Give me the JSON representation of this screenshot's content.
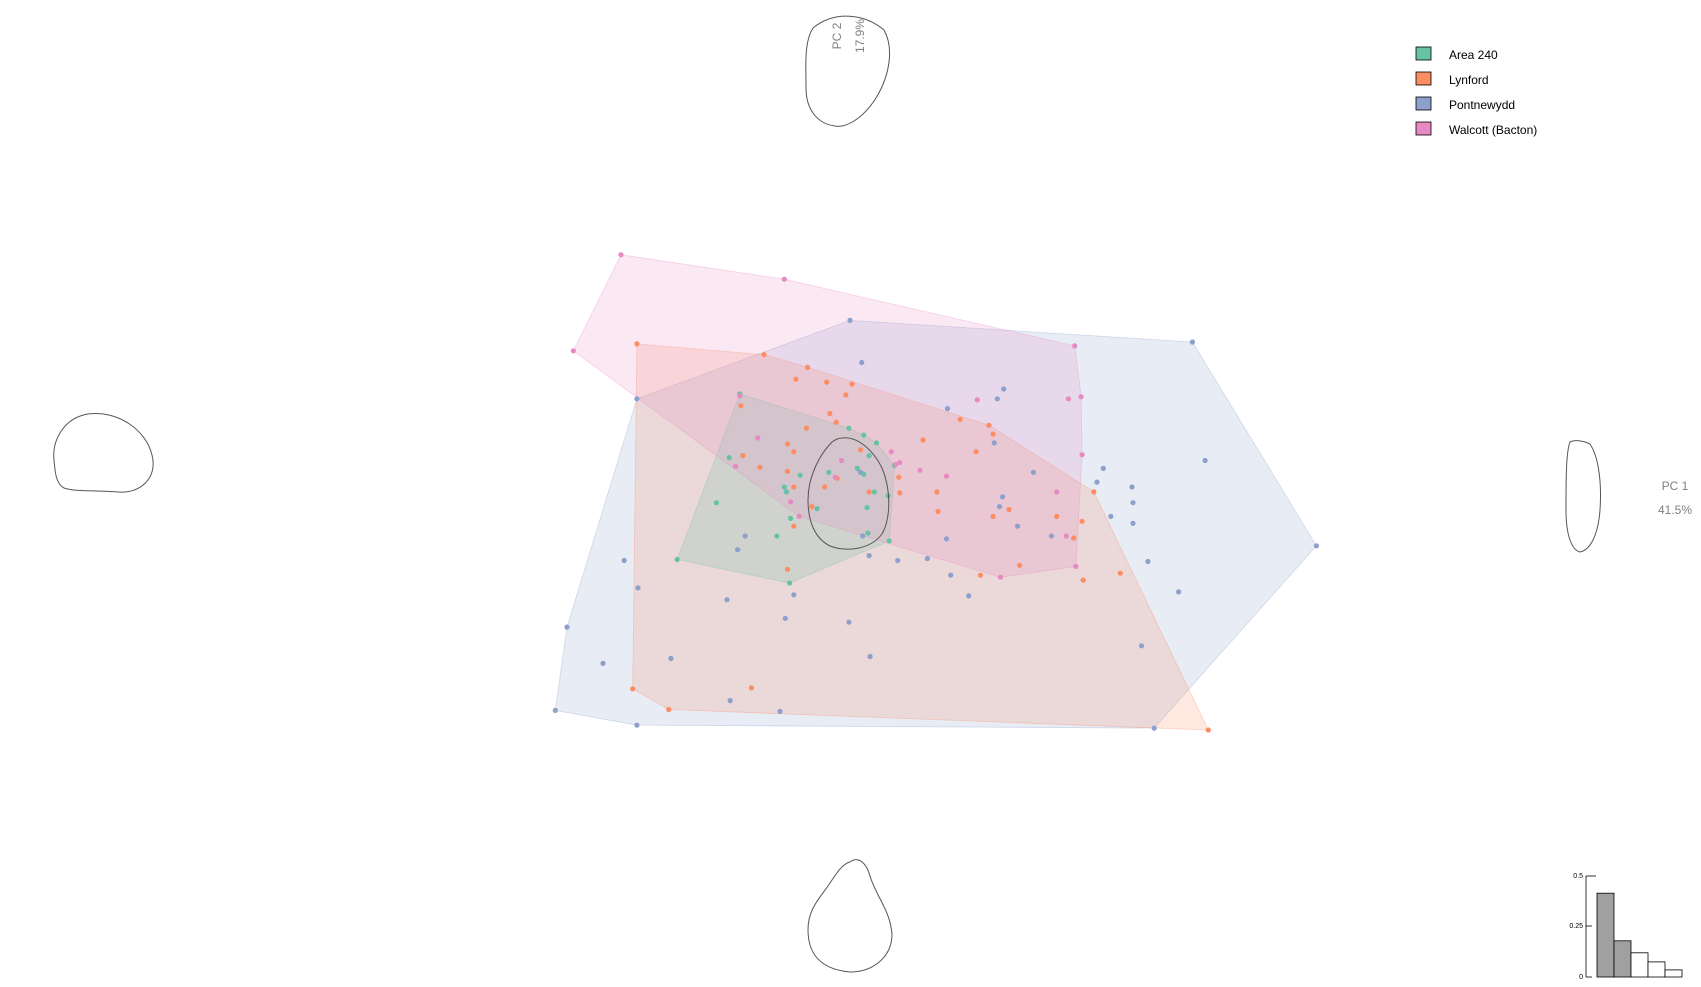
{
  "chart_data": {
    "type": "scatter",
    "x_axis": {
      "label": "PC 1",
      "variance": "41.5%"
    },
    "y_axis": {
      "label": "PC 2",
      "variance": "17.9%"
    },
    "xlim": [
      -6.2,
      6.2
    ],
    "ylim": [
      -4.8,
      4.8
    ],
    "hulls": true,
    "legend_position": "top-right",
    "series": [
      {
        "name": "Area 240",
        "color": "#66c2a5",
        "points": [
          [
            -1.04,
            0.95
          ],
          [
            -1.14,
            0.3
          ],
          [
            -1.26,
            -0.16
          ],
          [
            -1.63,
            -0.74
          ],
          [
            -0.57,
            -0.98
          ],
          [
            -0.69,
            -0.5
          ],
          [
            -0.56,
            -0.32
          ],
          [
            -0.6,
            -0.05
          ],
          [
            -0.47,
            0.12
          ],
          [
            -0.01,
            0.6
          ],
          [
            0.13,
            0.53
          ],
          [
            0.13,
            0.13
          ],
          [
            0.16,
            -0.21
          ],
          [
            0.17,
            -0.47
          ],
          [
            0.23,
            -0.05
          ],
          [
            0.07,
            0.19
          ],
          [
            0.18,
            0.32
          ],
          [
            0.25,
            0.45
          ],
          [
            0.37,
            -0.55
          ],
          [
            -0.31,
            -0.22
          ],
          [
            -0.2,
            0.15
          ],
          [
            0.36,
            -0.09
          ],
          [
            -0.62,
            0.0
          ],
          [
            0.42,
            0.22
          ]
        ]
      },
      {
        "name": "Lynford",
        "color": "#fc8d62",
        "points": [
          [
            -2.01,
            1.46
          ],
          [
            -1.03,
            0.83
          ],
          [
            -0.81,
            1.35
          ],
          [
            -0.51,
            1.1
          ],
          [
            -0.4,
            1.22
          ],
          [
            -0.22,
            1.07
          ],
          [
            0.02,
            1.05
          ],
          [
            -0.04,
            0.94
          ],
          [
            -0.19,
            0.75
          ],
          [
            -0.13,
            0.66
          ],
          [
            -0.59,
            0.44
          ],
          [
            -0.53,
            0.36
          ],
          [
            -1.01,
            0.32
          ],
          [
            -0.85,
            0.2
          ],
          [
            -0.59,
            0.16
          ],
          [
            -0.53,
            0.0
          ],
          [
            -0.24,
            0.0
          ],
          [
            -0.36,
            -0.2
          ],
          [
            -0.53,
            -0.4
          ],
          [
            -0.12,
            0.09
          ],
          [
            0.1,
            0.38
          ],
          [
            0.18,
            -0.05
          ],
          [
            0.46,
            0.1
          ],
          [
            0.47,
            -0.06
          ],
          [
            0.69,
            0.48
          ],
          [
            0.82,
            -0.05
          ],
          [
            0.83,
            -0.25
          ],
          [
            1.04,
            0.69
          ],
          [
            1.19,
            0.36
          ],
          [
            1.31,
            0.63
          ],
          [
            1.35,
            -0.3
          ],
          [
            1.5,
            -0.23
          ],
          [
            1.23,
            -0.9
          ],
          [
            1.6,
            -0.8
          ],
          [
            1.95,
            -0.3
          ],
          [
            2.19,
            -0.35
          ],
          [
            2.2,
            -0.95
          ],
          [
            2.11,
            -0.52
          ],
          [
            2.3,
            -0.05
          ],
          [
            1.35,
            0.54
          ],
          [
            2.55,
            -0.88
          ],
          [
            3.38,
            -2.48
          ],
          [
            -1.71,
            -2.27
          ],
          [
            -0.93,
            -2.05
          ],
          [
            -0.59,
            -0.84
          ],
          [
            -2.05,
            -2.06
          ],
          [
            -0.41,
            0.6
          ]
        ]
      },
      {
        "name": "Pontnewydd",
        "color": "#8da0cb",
        "points": [
          [
            0.0,
            1.7
          ],
          [
            0.92,
            0.8
          ],
          [
            1.36,
            0.45
          ],
          [
            1.73,
            0.15
          ],
          [
            2.33,
            0.05
          ],
          [
            2.39,
            0.19
          ],
          [
            1.41,
            -0.2
          ],
          [
            1.58,
            -0.4
          ],
          [
            1.9,
            -0.5
          ],
          [
            2.46,
            -0.3
          ],
          [
            2.66,
            0.0
          ],
          [
            2.67,
            -0.16
          ],
          [
            2.67,
            -0.37
          ],
          [
            2.81,
            -0.76
          ],
          [
            3.23,
            1.48
          ],
          [
            3.35,
            0.27
          ],
          [
            4.4,
            -0.6
          ],
          [
            3.1,
            -1.07
          ],
          [
            2.75,
            -1.62
          ],
          [
            2.87,
            -2.46
          ],
          [
            0.19,
            -1.73
          ],
          [
            -0.01,
            -1.38
          ],
          [
            -1.69,
            -1.75
          ],
          [
            -2.33,
            -1.8
          ],
          [
            -2.67,
            -1.43
          ],
          [
            -2.01,
            -2.43
          ],
          [
            -0.66,
            -2.29
          ],
          [
            -1.13,
            -2.18
          ],
          [
            -2.78,
            -2.28
          ],
          [
            0.45,
            -0.75
          ],
          [
            0.91,
            -0.53
          ],
          [
            0.73,
            -0.73
          ],
          [
            0.95,
            -0.9
          ],
          [
            -0.99,
            -0.5
          ],
          [
            -1.06,
            -0.64
          ],
          [
            -0.61,
            -1.34
          ],
          [
            1.12,
            -1.11
          ],
          [
            -1.16,
            -1.15
          ],
          [
            0.11,
            1.27
          ],
          [
            1.39,
            0.9
          ],
          [
            1.45,
            1.0
          ],
          [
            0.18,
            -0.7
          ],
          [
            0.1,
            0.15
          ],
          [
            -2.01,
            0.9
          ],
          [
            -0.53,
            -1.1
          ],
          [
            -2.13,
            -0.75
          ],
          [
            -2.0,
            -1.03
          ],
          [
            1.44,
            -0.1
          ],
          [
            0.12,
            -0.5
          ]
        ]
      },
      {
        "name": "Walcott (Bacton)",
        "color": "#e78ac3",
        "points": [
          [
            -2.16,
            2.37
          ],
          [
            -2.61,
            1.39
          ],
          [
            -0.62,
            2.12
          ],
          [
            -1.04,
            0.93
          ],
          [
            -0.87,
            0.5
          ],
          [
            -1.08,
            0.21
          ],
          [
            -0.08,
            0.27
          ],
          [
            -0.14,
            0.1
          ],
          [
            0.39,
            0.36
          ],
          [
            0.47,
            0.25
          ],
          [
            0.43,
            0.23
          ],
          [
            0.91,
            0.11
          ],
          [
            0.66,
            0.17
          ],
          [
            -0.56,
            -0.15
          ],
          [
            -0.48,
            -0.3
          ],
          [
            1.2,
            0.89
          ],
          [
            2.12,
            1.44
          ],
          [
            2.06,
            0.9
          ],
          [
            2.18,
            0.92
          ],
          [
            1.42,
            -0.92
          ],
          [
            1.95,
            -0.05
          ],
          [
            2.19,
            0.33
          ],
          [
            2.04,
            -0.5
          ],
          [
            2.13,
            -0.81
          ]
        ]
      }
    ],
    "scree": {
      "ticks": [
        "0",
        "0.25",
        "0.5"
      ],
      "values": [
        0.415,
        0.179,
        0.12,
        0.075,
        0.035
      ]
    }
  },
  "legend": {
    "items": [
      {
        "label": "Area 240",
        "color": "#66c2a5"
      },
      {
        "label": "Lynford",
        "color": "#fc8d62"
      },
      {
        "label": "Pontnewydd",
        "color": "#8da0cb"
      },
      {
        "label": "Walcott (Bacton)",
        "color": "#e78ac3"
      }
    ]
  }
}
